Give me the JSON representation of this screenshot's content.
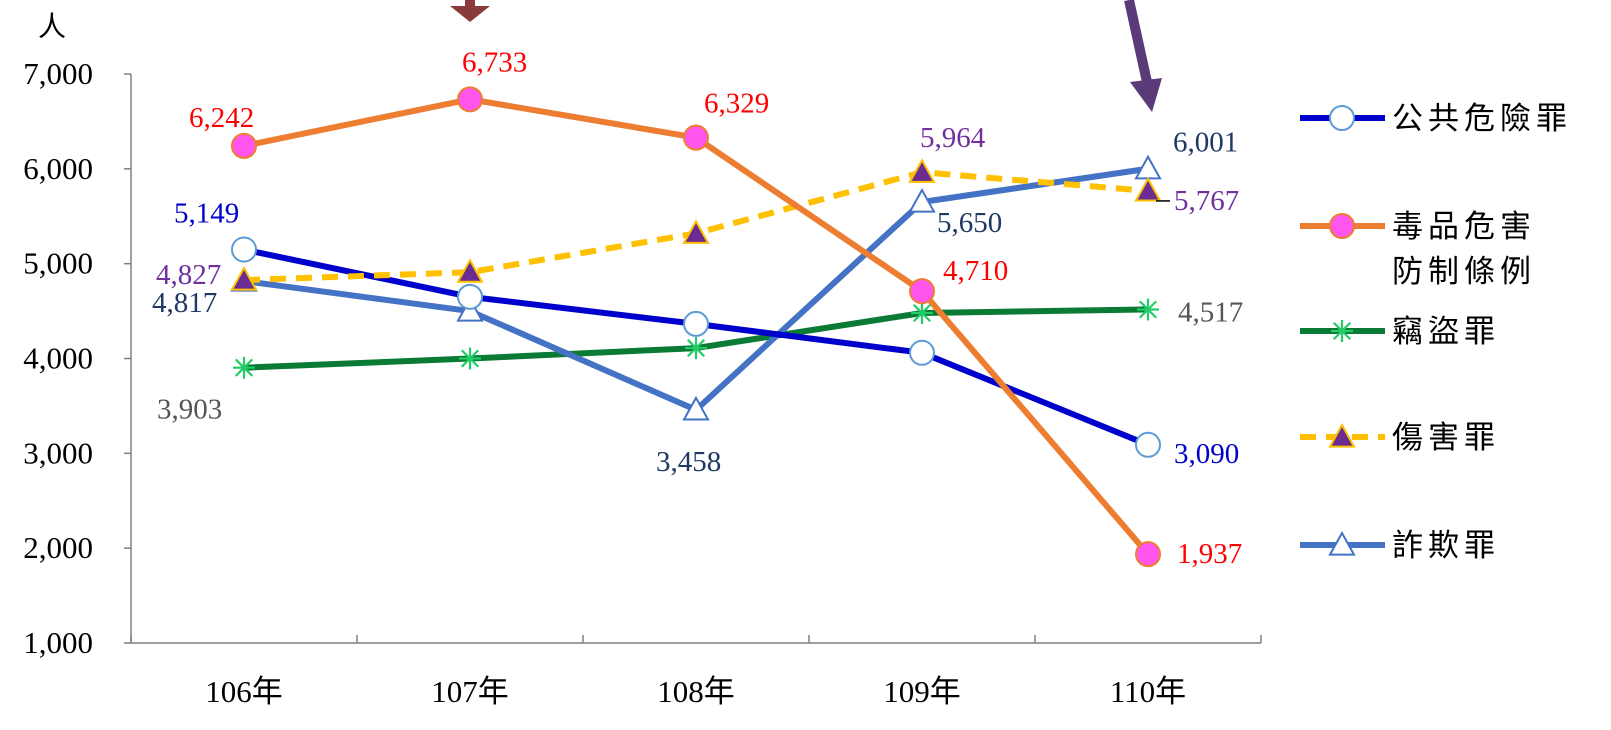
{
  "chart_data": {
    "type": "line",
    "title": "",
    "xlabel": "",
    "ylabel": "人",
    "ylim": [
      1000,
      7000
    ],
    "yticks": [
      "1,000",
      "2,000",
      "3,000",
      "4,000",
      "5,000",
      "6,000",
      "7,000"
    ],
    "categories": [
      "106年",
      "107年",
      "108年",
      "109年",
      "110年"
    ],
    "grid": false,
    "legend_position": "right",
    "series": [
      {
        "name": "公共危險罪",
        "values": [
          5149,
          4650,
          4365,
          4060,
          3090
        ],
        "color": "#0000cc",
        "marker": "open-circle",
        "line_style": "solid",
        "labels": [
          "5,149",
          "",
          "",
          "",
          "3,090"
        ],
        "label_color": "#0000cc"
      },
      {
        "name": "毒品危害防制條例",
        "legend_lines": [
          "毒品危害",
          "防制條例"
        ],
        "values": [
          6242,
          6733,
          6329,
          4710,
          1937
        ],
        "color": "#ed7d31",
        "marker": "magenta-circle",
        "line_style": "solid",
        "labels": [
          "6,242",
          "6,733",
          "6,329",
          "4,710",
          "1,937"
        ],
        "label_color": "#ff0000"
      },
      {
        "name": "竊盜罪",
        "values": [
          3903,
          4000,
          4110,
          4480,
          4517
        ],
        "color": "#0a7a35",
        "marker": "asterisk",
        "line_style": "solid",
        "labels": [
          "3,903",
          "",
          "",
          "",
          "4,517"
        ],
        "label_color": "#555555"
      },
      {
        "name": "傷害罪",
        "values": [
          4827,
          4910,
          5320,
          5964,
          5767
        ],
        "color": "#ffc000",
        "marker": "filled-triangle",
        "line_style": "dashed",
        "labels": [
          "4,827",
          "",
          "",
          "5,964",
          "5,767"
        ],
        "label_color": "#7030a0"
      },
      {
        "name": "詐欺罪",
        "values": [
          4817,
          4500,
          3458,
          5650,
          6001
        ],
        "color": "#4472c4",
        "marker": "open-triangle",
        "line_style": "solid",
        "labels": [
          "4,817",
          "",
          "3,458",
          "5,650",
          "6,001"
        ],
        "label_color": "#1f3864"
      }
    ]
  }
}
